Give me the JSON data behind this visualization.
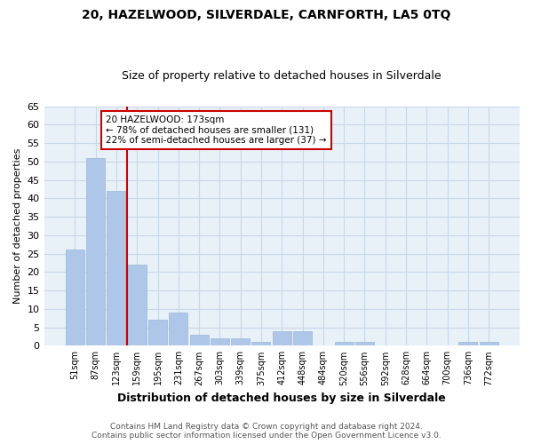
{
  "title": "20, HAZELWOOD, SILVERDALE, CARNFORTH, LA5 0TQ",
  "subtitle": "Size of property relative to detached houses in Silverdale",
  "xlabel": "Distribution of detached houses by size in Silverdale",
  "ylabel": "Number of detached properties",
  "categories": [
    "51sqm",
    "87sqm",
    "123sqm",
    "159sqm",
    "195sqm",
    "231sqm",
    "267sqm",
    "303sqm",
    "339sqm",
    "375sqm",
    "412sqm",
    "448sqm",
    "484sqm",
    "520sqm",
    "556sqm",
    "592sqm",
    "628sqm",
    "664sqm",
    "700sqm",
    "736sqm",
    "772sqm"
  ],
  "values": [
    26,
    51,
    42,
    22,
    7,
    9,
    3,
    2,
    2,
    1,
    4,
    4,
    0,
    1,
    1,
    0,
    0,
    0,
    0,
    1,
    1
  ],
  "bar_color": "#aec6e8",
  "bar_edge_color": "#9ab8d8",
  "vline_color": "#cc0000",
  "annotation_text": "20 HAZELWOOD: 173sqm\n← 78% of detached houses are smaller (131)\n22% of semi-detached houses are larger (37) →",
  "annotation_box_color": "#ffffff",
  "annotation_box_edge_color": "#cc0000",
  "ylim": [
    0,
    65
  ],
  "yticks": [
    0,
    5,
    10,
    15,
    20,
    25,
    30,
    35,
    40,
    45,
    50,
    55,
    60,
    65
  ],
  "background_color": "#ffffff",
  "plot_bg_color": "#e8f0f8",
  "grid_color": "#c8d8e8",
  "footer_line1": "Contains HM Land Registry data © Crown copyright and database right 2024.",
  "footer_line2": "Contains public sector information licensed under the Open Government Licence v3.0."
}
